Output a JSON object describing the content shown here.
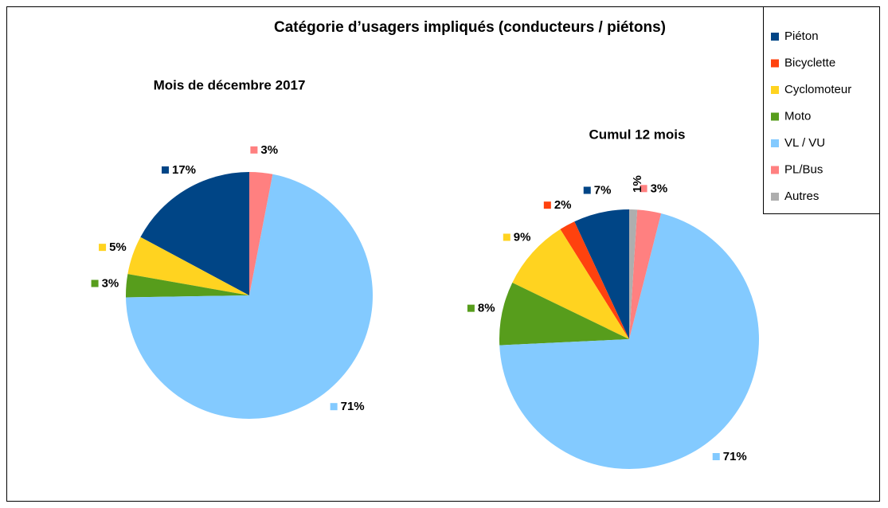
{
  "title": "Catégorie d’usagers impliqués (conducteurs / piétons)",
  "chart_data": [
    {
      "type": "pie",
      "title": "Mois de décembre 2017",
      "categories": [
        "Piéton",
        "Bicyclette",
        "Cyclomoteur",
        "Moto",
        "VL / VU",
        "PL/Bus",
        "Autres"
      ],
      "values": [
        17,
        0,
        5,
        3,
        71,
        3,
        0
      ],
      "value_labels": [
        "17%",
        null,
        "5%",
        "3%",
        "71%",
        "3%",
        null
      ],
      "colors": [
        "#004586",
        "#ff420e",
        "#ffd320",
        "#579d1c",
        "#83caff",
        "#ff8080",
        "#aeaeae"
      ]
    },
    {
      "type": "pie",
      "title": "Cumul 12 mois",
      "categories": [
        "Piéton",
        "Bicyclette",
        "Cyclomoteur",
        "Moto",
        "VL / VU",
        "PL/Bus",
        "Autres"
      ],
      "values": [
        7,
        2,
        9,
        8,
        71,
        3,
        1
      ],
      "value_labels": [
        "7%",
        "2%",
        "9%",
        "8%",
        "71%",
        "3%",
        "1%"
      ],
      "colors": [
        "#004586",
        "#ff420e",
        "#ffd320",
        "#579d1c",
        "#83caff",
        "#ff8080",
        "#aeaeae"
      ],
      "legend": "top-right"
    }
  ]
}
